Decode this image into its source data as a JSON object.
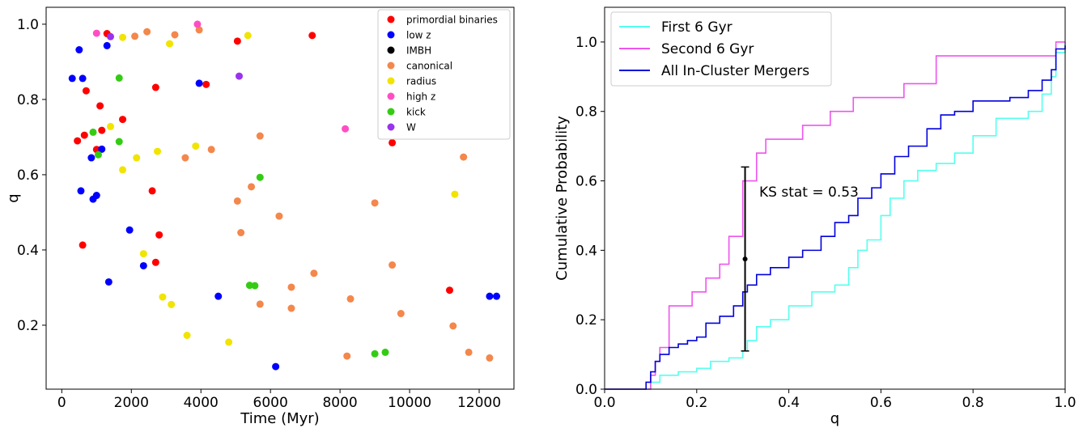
{
  "chart_data": [
    {
      "type": "scatter",
      "xlabel": "Time (Myr)",
      "ylabel": "q",
      "xlim": [
        -450,
        13000
      ],
      "ylim": [
        0.03,
        1.045
      ],
      "xticks": [
        0,
        2000,
        4000,
        6000,
        8000,
        10000,
        12000
      ],
      "xtick_labels": [
        "0",
        "2000",
        "4000",
        "6000",
        "8000",
        "10000",
        "12000"
      ],
      "yticks": [
        0.2,
        0.4,
        0.6,
        0.8,
        1.0
      ],
      "ytick_labels": [
        "0.2",
        "0.4",
        "0.6",
        "0.8",
        "1.0"
      ],
      "grid": false,
      "legend_position": "top-right",
      "series": [
        {
          "name": "primordial binaries",
          "color": "#ff0000",
          "points": [
            [
              1300,
              0.975
            ],
            [
              7200,
              0.97
            ],
            [
              5050,
              0.955
            ],
            [
              2700,
              0.832
            ],
            [
              4150,
              0.84
            ],
            [
              700,
              0.823
            ],
            [
              1100,
              0.783
            ],
            [
              1750,
              0.747
            ],
            [
              1150,
              0.718
            ],
            [
              650,
              0.705
            ],
            [
              450,
              0.69
            ],
            [
              9500,
              0.685
            ],
            [
              1000,
              0.667
            ],
            [
              2600,
              0.557
            ],
            [
              2800,
              0.44
            ],
            [
              600,
              0.413
            ],
            [
              2700,
              0.367
            ],
            [
              11150,
              0.293
            ]
          ]
        },
        {
          "name": "low z",
          "color": "#0000ff",
          "points": [
            [
              500,
              0.932
            ],
            [
              1300,
              0.943
            ],
            [
              3950,
              0.843
            ],
            [
              300,
              0.856
            ],
            [
              600,
              0.856
            ],
            [
              850,
              0.645
            ],
            [
              1150,
              0.668
            ],
            [
              550,
              0.557
            ],
            [
              1000,
              0.545
            ],
            [
              900,
              0.535
            ],
            [
              1950,
              0.453
            ],
            [
              2350,
              0.358
            ],
            [
              1350,
              0.315
            ],
            [
              4500,
              0.277
            ],
            [
              12300,
              0.277
            ],
            [
              12500,
              0.277
            ],
            [
              6150,
              0.09
            ]
          ]
        },
        {
          "name": "IMBH",
          "color": "#000000",
          "points": []
        },
        {
          "name": "canonical",
          "color": "#f4874b",
          "points": [
            [
              2100,
              0.968
            ],
            [
              2450,
              0.98
            ],
            [
              3250,
              0.972
            ],
            [
              3950,
              0.985
            ],
            [
              5700,
              0.703
            ],
            [
              4300,
              0.667
            ],
            [
              3550,
              0.645
            ],
            [
              11550,
              0.647
            ],
            [
              5450,
              0.568
            ],
            [
              5050,
              0.53
            ],
            [
              9000,
              0.525
            ],
            [
              6250,
              0.49
            ],
            [
              5150,
              0.446
            ],
            [
              9500,
              0.36
            ],
            [
              7250,
              0.338
            ],
            [
              6600,
              0.301
            ],
            [
              5700,
              0.256
            ],
            [
              6600,
              0.245
            ],
            [
              8300,
              0.27
            ],
            [
              9750,
              0.231
            ],
            [
              11250,
              0.198
            ],
            [
              11700,
              0.128
            ],
            [
              8200,
              0.118
            ],
            [
              12300,
              0.113
            ]
          ]
        },
        {
          "name": "radius",
          "color": "#f0e400",
          "points": [
            [
              1750,
              0.965
            ],
            [
              3100,
              0.948
            ],
            [
              5350,
              0.97
            ],
            [
              1400,
              0.728
            ],
            [
              3850,
              0.676
            ],
            [
              2750,
              0.662
            ],
            [
              2150,
              0.645
            ],
            [
              1750,
              0.613
            ],
            [
              11300,
              0.548
            ],
            [
              2350,
              0.39
            ],
            [
              2900,
              0.275
            ],
            [
              3150,
              0.255
            ],
            [
              3600,
              0.173
            ],
            [
              4800,
              0.155
            ]
          ]
        },
        {
          "name": "high z",
          "color": "#ff4ec4",
          "points": [
            [
              1000,
              0.976
            ],
            [
              3900,
              1.0
            ],
            [
              8150,
              0.722
            ]
          ]
        },
        {
          "name": "kick",
          "color": "#33cc13",
          "points": [
            [
              1650,
              0.857
            ],
            [
              900,
              0.713
            ],
            [
              1650,
              0.688
            ],
            [
              1050,
              0.653
            ],
            [
              5700,
              0.593
            ],
            [
              5400,
              0.306
            ],
            [
              5550,
              0.305
            ],
            [
              9300,
              0.128
            ],
            [
              9000,
              0.124
            ]
          ]
        },
        {
          "name": "W",
          "color": "#9933ee",
          "points": [
            [
              1400,
              0.967
            ],
            [
              5100,
              0.862
            ]
          ]
        }
      ]
    },
    {
      "type": "line",
      "xlabel": "q",
      "ylabel": "Cumulative Probability",
      "xlim": [
        0.0,
        1.0
      ],
      "ylim": [
        0.0,
        1.1
      ],
      "xticks": [
        0.0,
        0.2,
        0.4,
        0.6,
        0.8,
        1.0
      ],
      "xtick_labels": [
        "0.0",
        "0.2",
        "0.4",
        "0.6",
        "0.8",
        "1.0"
      ],
      "yticks": [
        0.0,
        0.2,
        0.4,
        0.6,
        0.8,
        1.0
      ],
      "ytick_labels": [
        "0.0",
        "0.2",
        "0.4",
        "0.6",
        "0.8",
        "1.0"
      ],
      "grid": false,
      "legend_position": "top-left",
      "series": [
        {
          "name": "First 6 Gyr",
          "color": "#55ffee",
          "x": [
            0.0,
            0.09,
            0.1,
            0.12,
            0.16,
            0.2,
            0.23,
            0.27,
            0.3,
            0.31,
            0.33,
            0.36,
            0.4,
            0.45,
            0.48,
            0.5,
            0.53,
            0.55,
            0.57,
            0.6,
            0.62,
            0.65,
            0.68,
            0.72,
            0.76,
            0.8,
            0.85,
            0.88,
            0.92,
            0.95,
            0.97,
            0.98,
            1.0
          ],
          "y": [
            0.0,
            0.0,
            0.02,
            0.04,
            0.05,
            0.06,
            0.08,
            0.09,
            0.11,
            0.14,
            0.18,
            0.2,
            0.24,
            0.28,
            0.28,
            0.3,
            0.35,
            0.4,
            0.43,
            0.5,
            0.55,
            0.6,
            0.63,
            0.65,
            0.68,
            0.73,
            0.78,
            0.78,
            0.8,
            0.85,
            0.9,
            0.97,
            1.0
          ]
        },
        {
          "name": "Second 6 Gyr",
          "color": "#ee55ee",
          "x": [
            0.0,
            0.08,
            0.1,
            0.11,
            0.12,
            0.14,
            0.19,
            0.22,
            0.25,
            0.27,
            0.3,
            0.33,
            0.35,
            0.43,
            0.49,
            0.51,
            0.54,
            0.6,
            0.65,
            0.72,
            0.82,
            0.86,
            0.92,
            0.97,
            0.98,
            1.0
          ],
          "y": [
            0.0,
            0.0,
            0.04,
            0.08,
            0.12,
            0.24,
            0.28,
            0.32,
            0.36,
            0.44,
            0.6,
            0.68,
            0.72,
            0.76,
            0.8,
            0.8,
            0.84,
            0.84,
            0.88,
            0.96,
            0.96,
            0.96,
            0.96,
            0.96,
            1.0,
            1.0
          ]
        },
        {
          "name": "All In-Cluster Mergers",
          "color": "#0000dd",
          "x": [
            0.0,
            0.08,
            0.09,
            0.1,
            0.11,
            0.12,
            0.14,
            0.16,
            0.18,
            0.2,
            0.22,
            0.25,
            0.28,
            0.3,
            0.31,
            0.33,
            0.36,
            0.4,
            0.43,
            0.47,
            0.5,
            0.53,
            0.55,
            0.58,
            0.6,
            0.63,
            0.66,
            0.7,
            0.73,
            0.76,
            0.8,
            0.84,
            0.88,
            0.92,
            0.95,
            0.97,
            0.98,
            1.0
          ],
          "y": [
            0.0,
            0.0,
            0.02,
            0.05,
            0.08,
            0.1,
            0.12,
            0.13,
            0.14,
            0.15,
            0.19,
            0.21,
            0.24,
            0.28,
            0.3,
            0.33,
            0.35,
            0.38,
            0.4,
            0.44,
            0.48,
            0.5,
            0.55,
            0.58,
            0.62,
            0.67,
            0.7,
            0.75,
            0.79,
            0.8,
            0.83,
            0.83,
            0.84,
            0.86,
            0.89,
            0.92,
            0.98,
            0.99
          ]
        }
      ],
      "ks_bar": {
        "x": 0.305,
        "y_low": 0.11,
        "y_high": 0.64,
        "y_mid": 0.375
      },
      "annotation": "KS stat = 0.53"
    }
  ]
}
